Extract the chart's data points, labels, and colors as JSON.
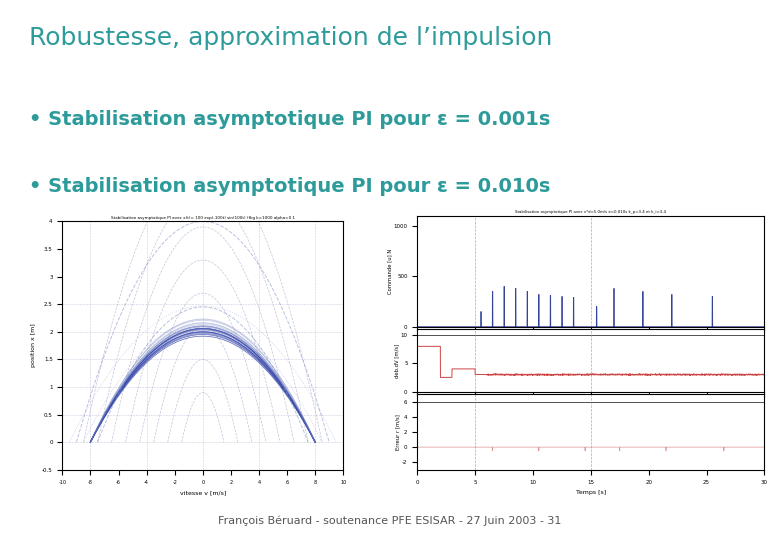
{
  "title": "Robustesse, approximation de l’impulsion",
  "title_color": "#2E9B9B",
  "title_fontsize": 18,
  "bg_color": "#FFFFFF",
  "left_bar_color": "#E87722",
  "header_line_color": "#2E9B9B",
  "bullet1": "Stabilisation asymptotique PI pour ε = 0.001s",
  "bullet2": "Stabilisation asymptotique PI pour ε = 0.010s",
  "bullet_color": "#2E9B9B",
  "bullet_fontsize": 14,
  "footer_text": "François Béruard - soutenance PFE ESISAR - 27 Juin 2003 - 31",
  "footer_color": "#555555",
  "footer_fontsize": 8,
  "left_bar_width": 0.01,
  "chart1_title": "Stabilisation asymptotique PI avec x(t)= 100 exp(-100t) sin(100t) (fkg k=1000 alpha=0.1",
  "chart1_ylabel": "position x [m]",
  "chart1_xlabel": "vitesse v [m/s]",
  "chart2_title": "Stabilisation asymptotique PI avec v*d=5.0m/s e=0.010s k_p=3.4 et k_i=3.4",
  "chart2_ylabel_top": "Commande [u] N",
  "chart2_ylabel_mid": "deb.dV [m/s]",
  "chart2_ylabel_bot": "Erreur r [m/s]",
  "chart2_xlabel": "Temps [s]"
}
